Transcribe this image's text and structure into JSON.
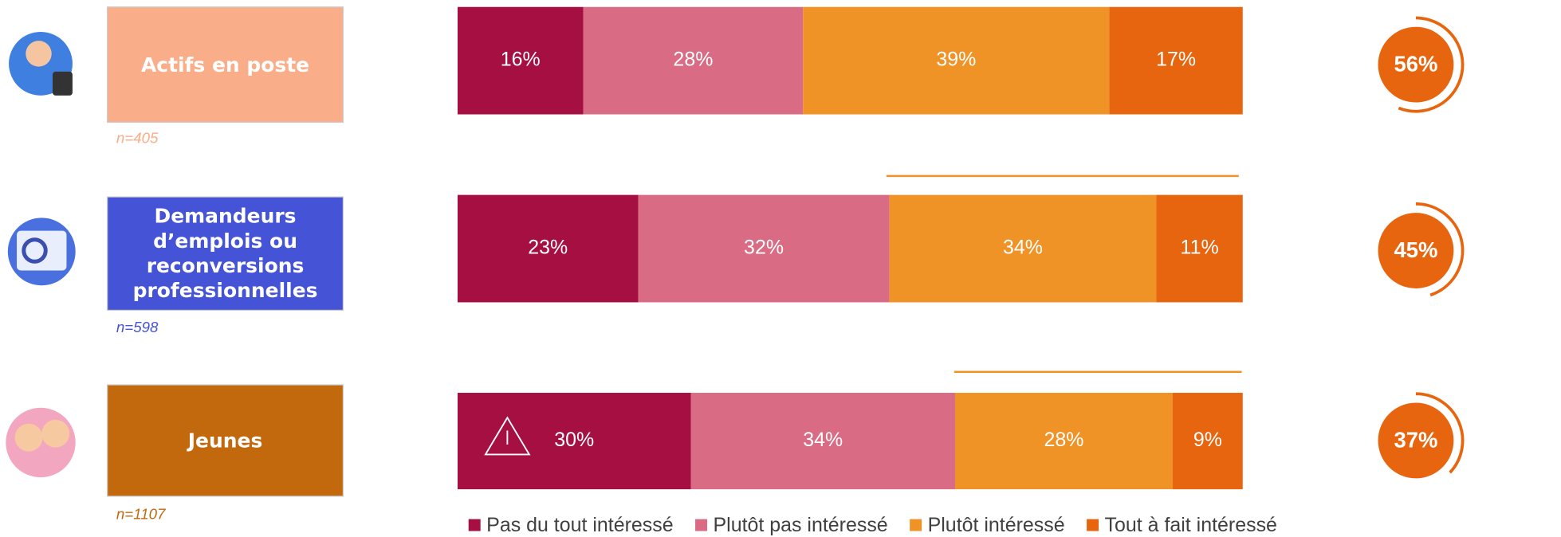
{
  "chart_data": {
    "type": "bar",
    "orientation": "horizontal",
    "stacked": true,
    "categories": [
      "Actifs en poste",
      "Demandeurs d’emplois ou reconversions professionnelles",
      "Jeunes"
    ],
    "category_colors": [
      "#f9ad88",
      "#4554d6",
      "#c2690e"
    ],
    "sample_sizes": [
      "n=405",
      "n=598",
      "n=1107"
    ],
    "series": [
      {
        "name": "Pas du tout intéressé",
        "color": "#a50f42",
        "values": [
          16,
          23,
          30
        ],
        "value_labels": [
          "16%",
          "23%",
          "30%"
        ]
      },
      {
        "name": "Plutôt pas intéressé",
        "color": "#d96b84",
        "values": [
          28,
          32,
          34
        ],
        "value_labels": [
          "28%",
          "32%",
          "34%"
        ]
      },
      {
        "name": "Plutôt intéressé",
        "color": "#f09327",
        "values": [
          39,
          34,
          28
        ],
        "value_labels": [
          "39%",
          "34%",
          "28%"
        ]
      },
      {
        "name": "Tout à fait intéressé",
        "color": "#e8650f",
        "values": [
          17,
          11,
          9
        ],
        "value_labels": [
          "17%",
          "11%",
          "9%"
        ]
      }
    ],
    "totals": {
      "color": "#e8650f",
      "values": [
        56,
        45,
        37
      ],
      "value_labels": [
        "56%",
        "45%",
        "37%"
      ]
    },
    "legend": "bottom"
  }
}
